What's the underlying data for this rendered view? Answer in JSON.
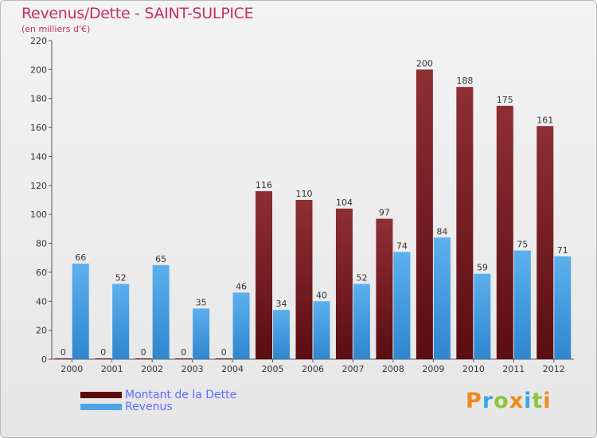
{
  "title": "Revenus/Dette - SAINT-SULPICE",
  "subtitle": "(en milliers d'€)",
  "logo": {
    "letters": [
      {
        "ch": "P",
        "color": "#f08a1c"
      },
      {
        "ch": "r",
        "color": "#3aa7e0"
      },
      {
        "ch": "o",
        "color": "#8fc43d"
      },
      {
        "ch": "x",
        "color": "#f08a1c"
      },
      {
        "ch": "i",
        "color": "#3aa7e0"
      },
      {
        "ch": "t",
        "color": "#8fc43d"
      },
      {
        "ch": "i",
        "color": "#f08a1c"
      }
    ]
  },
  "legend": {
    "debt_label": "Montant de la Dette",
    "revenue_label": "Revenus"
  },
  "colors": {
    "debt": "#7a1a1f",
    "revenue": "#4fa3e6",
    "title": "#c0306a"
  },
  "chart_data": {
    "type": "bar",
    "categories": [
      "2000",
      "2001",
      "2002",
      "2003",
      "2004",
      "2005",
      "2006",
      "2007",
      "2008",
      "2009",
      "2010",
      "2011",
      "2012"
    ],
    "series": [
      {
        "name": "Montant de la Dette",
        "values": [
          0,
          0,
          0,
          0,
          0,
          116,
          110,
          104,
          97,
          200,
          188,
          175,
          161
        ]
      },
      {
        "name": "Revenus",
        "values": [
          66,
          52,
          65,
          35,
          46,
          34,
          40,
          52,
          74,
          84,
          59,
          75,
          71
        ]
      }
    ],
    "yticks": [
      0,
      20,
      40,
      60,
      80,
      100,
      120,
      140,
      160,
      180,
      200,
      220
    ],
    "ylim": [
      0,
      220
    ],
    "title": "Revenus/Dette - SAINT-SULPICE",
    "ylabel": "(en milliers d'€)",
    "xlabel": ""
  }
}
